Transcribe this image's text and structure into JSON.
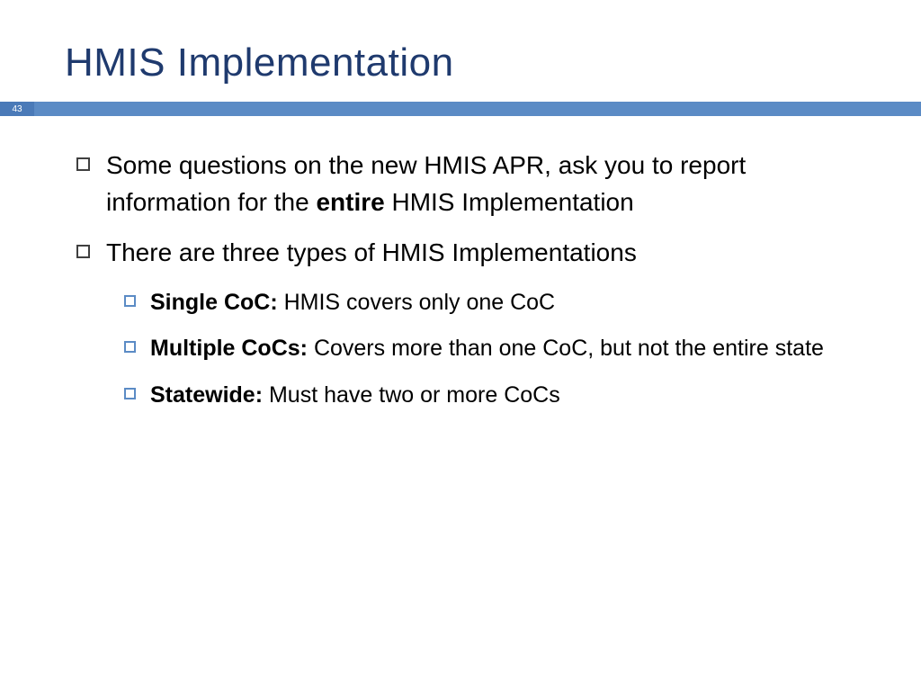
{
  "slide": {
    "title": "HMIS Implementation",
    "page_number": "43",
    "colors": {
      "title_color": "#1f3a6e",
      "bar_color": "#5b8bc5",
      "page_box_color": "#4a7ab8",
      "text_color": "#000000",
      "bullet_border": "#404040",
      "sub_bullet_border": "#5b8bc5",
      "background": "#ffffff"
    },
    "typography": {
      "title_fontsize": 44,
      "body_fontsize": 28,
      "sub_fontsize": 25
    },
    "bullets": [
      {
        "text_parts": [
          {
            "text": "Some questions on the new HMIS APR, ask you to report information for the ",
            "bold": false
          },
          {
            "text": "entire",
            "bold": true
          },
          {
            "text": " HMIS Implementation",
            "bold": false
          }
        ]
      },
      {
        "text_parts": [
          {
            "text": "There are three types of HMIS Implementations",
            "bold": false
          }
        ],
        "sub_bullets": [
          {
            "text_parts": [
              {
                "text": "Single CoC: ",
                "bold": true
              },
              {
                "text": "HMIS covers only one CoC",
                "bold": false
              }
            ]
          },
          {
            "text_parts": [
              {
                "text": "Multiple CoCs: ",
                "bold": true
              },
              {
                "text": "Covers more than one CoC, but not the entire state",
                "bold": false
              }
            ]
          },
          {
            "text_parts": [
              {
                "text": "Statewide: ",
                "bold": true
              },
              {
                "text": "Must have two or more CoCs",
                "bold": false
              }
            ]
          }
        ]
      }
    ]
  }
}
